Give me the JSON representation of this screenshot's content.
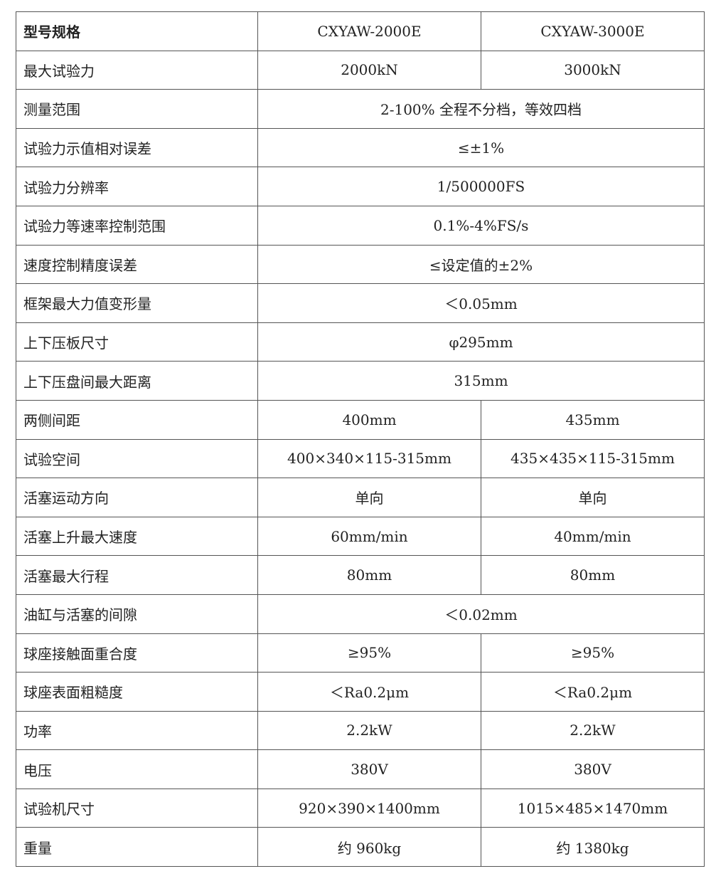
{
  "table": {
    "rows": [
      {
        "label": "型号规格",
        "values": [
          "CXYAW-2000E",
          "CXYAW-3000E"
        ]
      },
      {
        "label": "最大试验力",
        "values": [
          "2000kN",
          "3000kN"
        ]
      },
      {
        "label": "测量范围",
        "values": [
          "2-100% 全程不分档，等效四档"
        ]
      },
      {
        "label": "试验力示值相对误差",
        "values": [
          "≤±1%"
        ]
      },
      {
        "label": "试验力分辨率",
        "values": [
          "1/500000FS"
        ]
      },
      {
        "label": "试验力等速率控制范围",
        "values": [
          "0.1%-4%FS/s"
        ]
      },
      {
        "label": "速度控制精度误差",
        "values": [
          "≤设定值的±2%"
        ]
      },
      {
        "label": "框架最大力值变形量",
        "values": [
          "＜0.05mm"
        ]
      },
      {
        "label": "上下压板尺寸",
        "values": [
          "φ295mm"
        ]
      },
      {
        "label": "上下压盘间最大距离",
        "values": [
          "315mm"
        ]
      },
      {
        "label": "两侧间距",
        "values": [
          "400mm",
          "435mm"
        ]
      },
      {
        "label": "试验空间",
        "values": [
          "400×340×115-315mm",
          "435×435×115-315mm"
        ]
      },
      {
        "label": "活塞运动方向",
        "values": [
          "单向",
          "单向"
        ]
      },
      {
        "label": "活塞上升最大速度",
        "values": [
          "60mm/min",
          "40mm/min"
        ]
      },
      {
        "label": "活塞最大行程",
        "values": [
          "80mm",
          "80mm"
        ]
      },
      {
        "label": "油缸与活塞的间隙",
        "values": [
          "＜0.02mm"
        ]
      },
      {
        "label": "球座接触面重合度",
        "values": [
          "≥95%",
          "≥95%"
        ]
      },
      {
        "label": "球座表面粗糙度",
        "values": [
          "＜Ra0.2μm",
          "＜Ra0.2μm"
        ]
      },
      {
        "label": "功率",
        "values": [
          "2.2kW",
          "2.2kW"
        ]
      },
      {
        "label": "电压",
        "values": [
          "380V",
          "380V"
        ]
      },
      {
        "label": "试验机尺寸",
        "values": [
          "920×390×1400mm",
          "1015×485×1470mm"
        ]
      },
      {
        "label": "重量",
        "values": [
          "约 960kg",
          "约 1380kg"
        ]
      }
    ]
  }
}
